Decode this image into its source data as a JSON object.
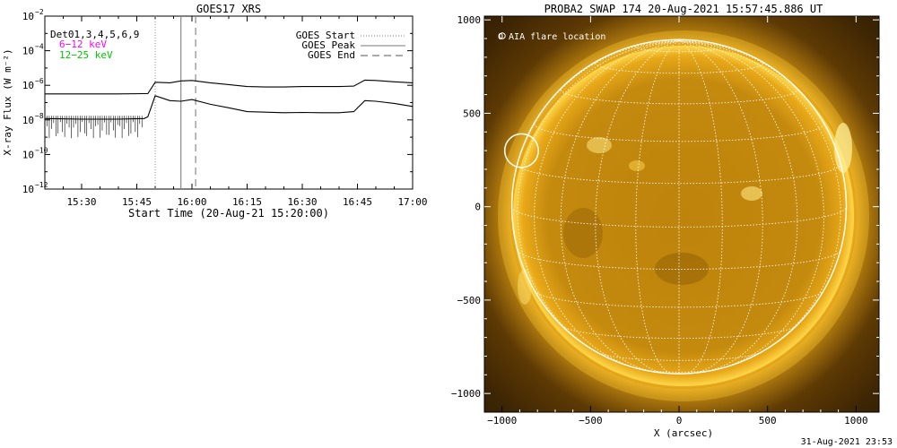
{
  "chart_data": [
    {
      "type": "line",
      "title": "GOES17 XRS",
      "xlabel": "Start Time (20-Aug-21 15:20:00)",
      "ylabel": "X-ray Flux (W m⁻²)",
      "ylog": true,
      "xlim": [
        "15:20",
        "17:00"
      ],
      "ylim": [
        1e-12,
        0.01
      ],
      "x_ticks": [
        "15:30",
        "15:45",
        "16:00",
        "16:15",
        "16:30",
        "16:45",
        "17:00"
      ],
      "y_ticks": [
        {
          "value": 0.01,
          "base": "10",
          "exp": "−2"
        },
        {
          "value": 0.0001,
          "base": "10",
          "exp": "−4"
        },
        {
          "value": 1e-06,
          "base": "10",
          "exp": "−6"
        },
        {
          "value": 1e-08,
          "base": "10",
          "exp": "−8"
        },
        {
          "value": 1e-10,
          "base": "10",
          "exp": "−10"
        },
        {
          "value": 1e-12,
          "base": "10",
          "exp": "−12"
        }
      ],
      "legend_left": [
        {
          "label": "Det01,3,4,5,6,9",
          "color": "#000000"
        },
        {
          "label": "6−12 keV",
          "color": "#ff00ff"
        },
        {
          "label": "12−25 keV",
          "color": "#00c800"
        }
      ],
      "legend_right": [
        {
          "label": "GOES Start",
          "style": "dotted"
        },
        {
          "label": "GOES Peak",
          "style": "solid"
        },
        {
          "label": "GOES End",
          "style": "dashed"
        }
      ],
      "markers": {
        "start": "15:50",
        "peak": "15:57",
        "end": "16:01"
      },
      "series": [
        {
          "x": [
            "15:20",
            "15:30",
            "15:40",
            "15:47",
            "15:48",
            "15:50",
            "15:54",
            "15:57",
            "16:00",
            "16:05",
            "16:10",
            "16:15",
            "16:20",
            "16:25",
            "16:30",
            "16:35",
            "16:40",
            "16:44",
            "16:47",
            "16:50",
            "16:55",
            "17:00"
          ],
          "y": [
            3.2e-07,
            3.2e-07,
            3.2e-07,
            3.3e-07,
            3.3e-07,
            1.5e-06,
            1.4e-06,
            1.8e-06,
            1.9e-06,
            1.4e-06,
            1.1e-06,
            8.5e-07,
            8e-07,
            8e-07,
            8.5e-07,
            8.5e-07,
            8.5e-07,
            9e-07,
            2e-06,
            1.9e-06,
            1.6e-06,
            1.4e-06
          ]
        },
        {
          "x": [
            "15:20",
            "15:30",
            "15:40",
            "15:47",
            "15:48",
            "15:50",
            "15:54",
            "15:57",
            "16:00",
            "16:05",
            "16:10",
            "16:15",
            "16:20",
            "16:25",
            "16:30",
            "16:35",
            "16:40",
            "16:44",
            "16:47",
            "16:50",
            "16:55",
            "17:00"
          ],
          "y": [
            1.2e-08,
            1.1e-08,
            1.1e-08,
            1.2e-08,
            1.5e-08,
            2.5e-07,
            1.3e-07,
            1.2e-07,
            1.5e-07,
            8e-08,
            5e-08,
            3e-08,
            2.8e-08,
            2.6e-08,
            2.7e-08,
            2.6e-08,
            2.6e-08,
            3e-08,
            1.3e-07,
            1.2e-07,
            9e-08,
            6e-08
          ]
        }
      ]
    },
    {
      "type": "other",
      "title": "PROBA2 SWAP 174 20-Aug-2021 15:57:45.886 UT",
      "xlabel": "X (arcsec)",
      "legend": "O AIA flare location",
      "xlim": [
        -1100,
        1130
      ],
      "ylim": [
        -1100,
        1020
      ],
      "x_ticks": [
        -1000,
        -500,
        0,
        500,
        1000
      ],
      "y_ticks": [
        1000,
        500,
        0,
        -500,
        -1000
      ],
      "x_tick_labels": [
        "−1000",
        "−500",
        "0",
        "500",
        "1000"
      ],
      "y_tick_labels": [
        "1000",
        "500",
        "0",
        "−500",
        "−1000"
      ],
      "solar_radius": 945,
      "flare_location": {
        "x": -890,
        "y": 300,
        "r": 95
      },
      "timestamp": "31-Aug-2021 23:53",
      "colors": {
        "disk": "#c48a0c",
        "corona": "#ffd640",
        "grid": "#ffffff"
      }
    }
  ]
}
